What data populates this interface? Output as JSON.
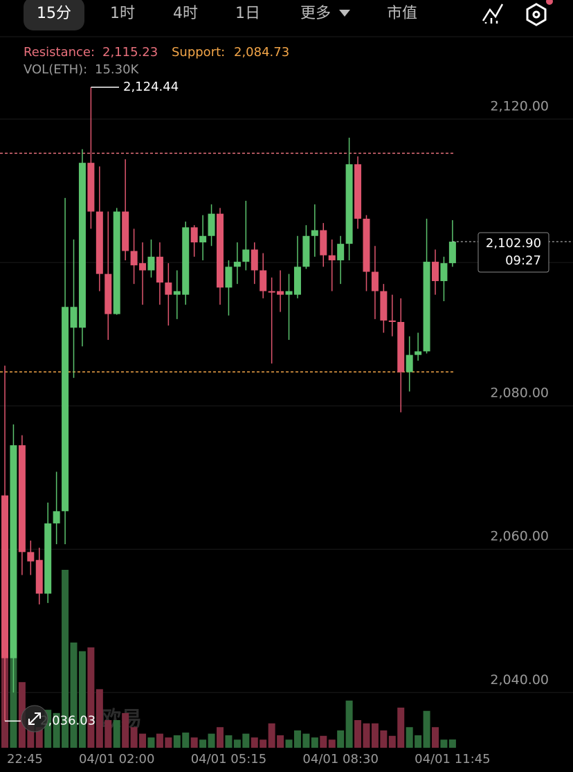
{
  "tabs": [
    "15分",
    "1时",
    "4时",
    "1日",
    "更多",
    "市值"
  ],
  "chart_data": {
    "type": "candlestick",
    "categories": [
      "22:45",
      null,
      null,
      null,
      null,
      null,
      null,
      null,
      null,
      null,
      null,
      null,
      null,
      "04/01 02:00",
      null,
      null,
      null,
      null,
      null,
      null,
      null,
      null,
      null,
      null,
      null,
      null,
      "04/01 05:15",
      null,
      null,
      null,
      null,
      null,
      null,
      null,
      null,
      null,
      null,
      null,
      null,
      "04/01 08:30",
      null,
      null,
      null,
      null,
      null,
      null,
      null,
      null,
      null,
      null,
      null,
      null,
      "04/01 11:45"
    ],
    "open": [
      2067.5,
      2044.8,
      2074.5,
      2059.6,
      2058.5,
      2053.8,
      2063.6,
      2065.3,
      2090.9,
      2090.9,
      2113.9,
      2107.1,
      2098.4,
      2092.8,
      2107.1,
      2101.6,
      2099.9,
      2098.9,
      2100.8,
      2097.2,
      2095.5,
      2095.5,
      2104.9,
      2102.8,
      2103.7,
      2106.8,
      2096.5,
      2099.4,
      2100.1,
      2101.8,
      2098.9,
      2096.0,
      2096.0,
      2095.5,
      2095.5,
      2099.4,
      2103.7,
      2104.5,
      2101.0,
      2100.3,
      2102.6,
      2113.7,
      2106.1,
      2098.7,
      2096.0,
      2091.9,
      2091.7,
      2084.7,
      2087.1,
      2087.6,
      2100.1,
      2097.4,
      2099.9
    ],
    "high": [
      2085.6,
      2077.4,
      2075.9,
      2061.2,
      2060.2,
      2066.5,
      2070.8,
      2109.0,
      2103.2,
      2115.8,
      2124.44,
      2113.4,
      2107.1,
      2107.6,
      2114.4,
      2104.7,
      2102.8,
      2103.2,
      2102.8,
      2099.9,
      2098.9,
      2105.7,
      2105.2,
      2106.6,
      2108.1,
      2107.6,
      2100.3,
      2102.8,
      2108.6,
      2102.8,
      2101.3,
      2097.9,
      2098.9,
      2098.4,
      2103.7,
      2105.2,
      2108.1,
      2105.5,
      2103.2,
      2103.7,
      2117.4,
      2114.8,
      2106.6,
      2102.3,
      2097.0,
      2095.5,
      2095.0,
      2089.7,
      2090.2,
      2106.1,
      2101.8,
      2100.8,
      2105.9
    ],
    "low": [
      2036.03,
      2040.0,
      2056.4,
      2056.4,
      2052.3,
      2052.5,
      2060.7,
      2060.7,
      2083.9,
      2088.3,
      2104.7,
      2096.0,
      2089.2,
      2092.7,
      2100.3,
      2097.0,
      2094.1,
      2097.9,
      2094.1,
      2091.2,
      2092.1,
      2094.1,
      2100.8,
      2100.3,
      2102.3,
      2094.1,
      2092.6,
      2097.0,
      2098.9,
      2097.0,
      2095.0,
      2085.9,
      2093.1,
      2089.2,
      2095.0,
      2099.1,
      2100.8,
      2099.4,
      2096.0,
      2097.0,
      2100.3,
      2104.7,
      2096.0,
      2092.1,
      2090.2,
      2089.7,
      2079.1,
      2082.0,
      2086.3,
      2087.3,
      2095.5,
      2094.6,
      2099.4
    ],
    "close": [
      2044.8,
      2074.5,
      2059.6,
      2058.3,
      2053.8,
      2063.6,
      2065.3,
      2093.8,
      2093.8,
      2113.9,
      2107.1,
      2098.4,
      2092.8,
      2107.1,
      2101.6,
      2099.6,
      2098.9,
      2100.8,
      2097.2,
      2095.5,
      2096.0,
      2104.9,
      2102.8,
      2103.7,
      2106.8,
      2096.5,
      2099.4,
      2100.1,
      2101.8,
      2098.9,
      2096.0,
      2095.8,
      2095.5,
      2096.0,
      2099.4,
      2103.7,
      2104.5,
      2101.0,
      2100.3,
      2102.6,
      2113.7,
      2106.1,
      2098.7,
      2096.0,
      2091.9,
      2091.7,
      2084.7,
      2087.1,
      2087.6,
      2100.1,
      2097.4,
      2099.9,
      2102.9
    ],
    "up_color": "#5cc46e",
    "down_color": "#e0566f",
    "ylim": [
      2032.3,
      2131.3
    ],
    "yticks": [
      {
        "value": 2040,
        "label": "2,040.00"
      },
      {
        "value": 2060,
        "label": "2,060.00"
      },
      {
        "value": 2080,
        "label": "2,080.00"
      },
      {
        "value": 2100,
        "label": "2,100.00"
      },
      {
        "value": 2120,
        "label": "2,120.00"
      }
    ],
    "grid": true,
    "resistance": {
      "label": "Resistance:",
      "value": 2115.23,
      "value_label": "2,115.23",
      "color": "#e8707c"
    },
    "support": {
      "label": "Support:",
      "value": 2084.73,
      "value_label": "2,084.73",
      "color": "#f2a548"
    },
    "volume": {
      "label": "VOL(ETH):",
      "last_label": "15.30K",
      "up_color": "#2d6a3a",
      "down_color": "#7a2a3d",
      "values": [
        166,
        166,
        121,
        51,
        38,
        70,
        64,
        328,
        194,
        178,
        185,
        108,
        51,
        51,
        64,
        38,
        26,
        19,
        26,
        19,
        23,
        28,
        19,
        15,
        26,
        38,
        23,
        15,
        26,
        19,
        15,
        45,
        23,
        15,
        32,
        26,
        19,
        22,
        15,
        32,
        87,
        51,
        45,
        45,
        32,
        22,
        74,
        38,
        23,
        68,
        38,
        15,
        15.3
      ]
    },
    "max_marker": {
      "value": 2124.44,
      "label": "2,124.44"
    },
    "min_marker": {
      "value": 2036.03,
      "label": "2,036.03"
    },
    "last_price": {
      "value": 2102.9,
      "label": "2,102.90",
      "countdown": "09:27"
    },
    "watermark": "欧易"
  }
}
